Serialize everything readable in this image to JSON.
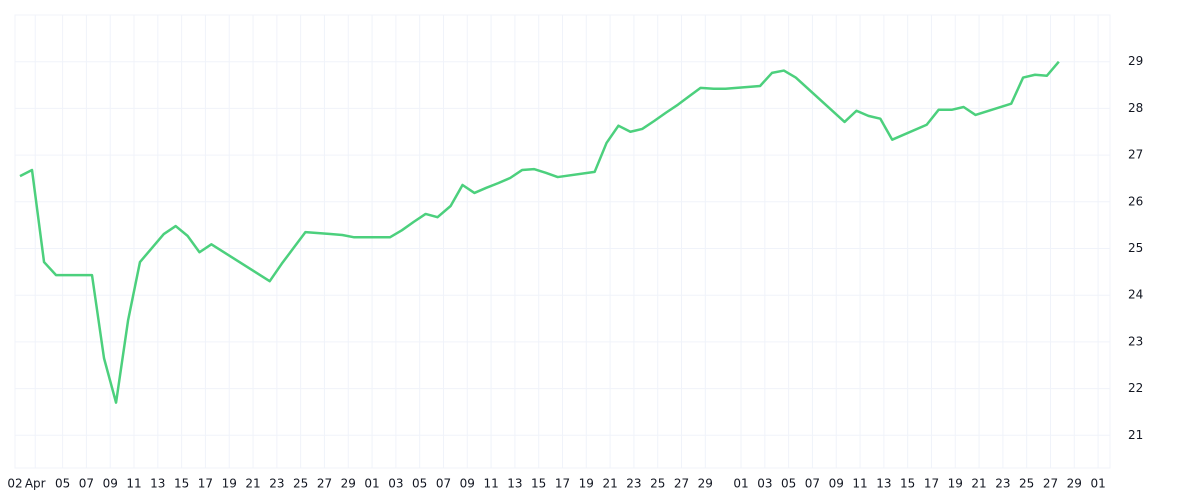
{
  "chart_data": {
    "type": "line",
    "x": [
      0.42,
      1.43,
      2.44,
      3.45,
      4.45,
      5.46,
      6.47,
      7.48,
      8.49,
      9.5,
      10.5,
      11.5,
      12.5,
      13.5,
      14.5,
      15.5,
      16.5,
      21.4,
      22.4,
      23.4,
      24.4,
      26.5,
      27.5,
      28.5,
      29.5,
      31.5,
      32.5,
      33.5,
      34.5,
      35.5,
      36.6,
      37.6,
      38.6,
      39.6,
      40.6,
      41.6,
      42.6,
      43.6,
      44.6,
      45.6,
      48.7,
      49.7,
      50.7,
      51.7,
      52.7,
      53.7,
      54.7,
      55.7,
      56.7,
      57.6,
      58.7,
      59.7,
      62.6,
      63.6,
      64.6,
      65.6,
      69.7,
      70.7,
      71.7,
      72.7,
      73.7,
      76.6,
      77.6,
      78.7,
      79.7,
      80.7,
      83.7,
      84.7,
      85.7,
      86.7,
      87.7
    ],
    "series": [
      {
        "color": "#4cd07d",
        "values": [
          26.55,
          26.68,
          24.71,
          24.43,
          24.43,
          24.43,
          24.43,
          22.65,
          21.7,
          23.46,
          24.71,
          25.01,
          25.31,
          25.48,
          25.27,
          24.92,
          25.09,
          24.3,
          24.67,
          25.01,
          25.35,
          25.31,
          25.29,
          25.24,
          25.24,
          25.24,
          25.39,
          25.57,
          25.74,
          25.67,
          25.91,
          26.36,
          26.19,
          26.3,
          26.4,
          26.51,
          26.68,
          26.7,
          26.62,
          26.53,
          26.64,
          27.26,
          27.63,
          27.5,
          27.56,
          27.73,
          27.91,
          28.08,
          28.27,
          28.44,
          28.42,
          28.42,
          28.48,
          28.76,
          28.81,
          28.66,
          27.71,
          27.95,
          27.84,
          27.78,
          27.33,
          27.65,
          27.97,
          27.97,
          28.03,
          27.86,
          28.1,
          28.66,
          28.72,
          28.7,
          29.0
        ]
      }
    ],
    "xlim": [
      0,
      92
    ],
    "xticks": [
      {
        "value": 0,
        "label": "02"
      },
      {
        "value": 1.7,
        "label": "Apr"
      },
      {
        "value": 4,
        "label": "05"
      },
      {
        "value": 6,
        "label": "07"
      },
      {
        "value": 8,
        "label": "09"
      },
      {
        "value": 10,
        "label": "11"
      },
      {
        "value": 12,
        "label": "13"
      },
      {
        "value": 14,
        "label": "15"
      },
      {
        "value": 16,
        "label": "17"
      },
      {
        "value": 18,
        "label": "19"
      },
      {
        "value": 20,
        "label": "21"
      },
      {
        "value": 22,
        "label": "23"
      },
      {
        "value": 24,
        "label": "25"
      },
      {
        "value": 26,
        "label": "27"
      },
      {
        "value": 28,
        "label": "29"
      },
      {
        "value": 30,
        "label": "01"
      },
      {
        "value": 32,
        "label": "03"
      },
      {
        "value": 34,
        "label": "05"
      },
      {
        "value": 36,
        "label": "07"
      },
      {
        "value": 38,
        "label": "09"
      },
      {
        "value": 40,
        "label": "11"
      },
      {
        "value": 42,
        "label": "13"
      },
      {
        "value": 44,
        "label": "15"
      },
      {
        "value": 46,
        "label": "17"
      },
      {
        "value": 48,
        "label": "19"
      },
      {
        "value": 50,
        "label": "21"
      },
      {
        "value": 52,
        "label": "23"
      },
      {
        "value": 54,
        "label": "25"
      },
      {
        "value": 56,
        "label": "27"
      },
      {
        "value": 58,
        "label": "29"
      },
      {
        "value": 61,
        "label": "01"
      },
      {
        "value": 63,
        "label": "03"
      },
      {
        "value": 65,
        "label": "05"
      },
      {
        "value": 67,
        "label": "07"
      },
      {
        "value": 69,
        "label": "09"
      },
      {
        "value": 71,
        "label": "11"
      },
      {
        "value": 73,
        "label": "13"
      },
      {
        "value": 75,
        "label": "15"
      },
      {
        "value": 77,
        "label": "17"
      },
      {
        "value": 79,
        "label": "19"
      },
      {
        "value": 81,
        "label": "21"
      },
      {
        "value": 83,
        "label": "23"
      },
      {
        "value": 85,
        "label": "25"
      },
      {
        "value": 87,
        "label": "27"
      },
      {
        "value": 89,
        "label": "29"
      },
      {
        "value": 91,
        "label": "01"
      }
    ],
    "ylim": [
      20.3,
      30.0
    ],
    "yticks": [
      21,
      22,
      23,
      24,
      25,
      26,
      27,
      28,
      29
    ],
    "grid": true
  }
}
